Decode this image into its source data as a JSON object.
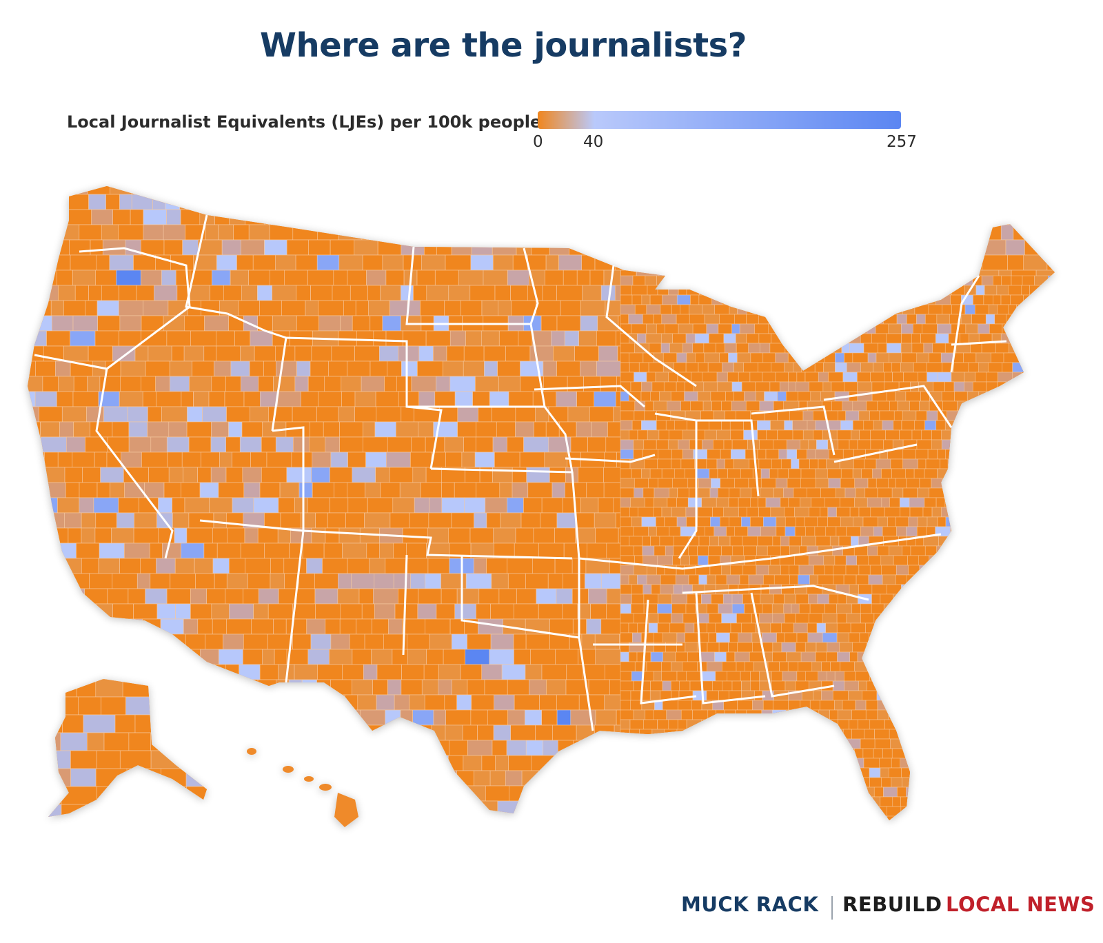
{
  "title": "Where are the journalists?",
  "legend": {
    "label": "Local Journalist Equivalents (LJEs) per 100k people",
    "min": "0",
    "mid": "40",
    "max": "257",
    "stops": [
      {
        "value": 0,
        "color": "#f0861e"
      },
      {
        "value": 40,
        "color": "#b9c9fb"
      },
      {
        "value": 257,
        "color": "#5b86f2"
      }
    ]
  },
  "colors": {
    "orange": "#f0861e",
    "orange_alt": "#e9923f",
    "tan": "#d99a73",
    "mauve": "#c8a5a8",
    "lavender": "#b6b9e0",
    "light_blue": "#b7c8fb",
    "blue": "#89a6f6",
    "dark_blue": "#5b86f2",
    "state_border": "#ffffff",
    "title": "#163b63"
  },
  "map": {
    "type": "choropleth",
    "geography": "US counties",
    "regions": [
      "Contiguous United States",
      "Alaska",
      "Hawaii"
    ]
  },
  "footer": {
    "brand1": "MUCK RACK",
    "brand2_part1": "REBUILD",
    "brand2_part2": "LOCAL NEWS"
  }
}
